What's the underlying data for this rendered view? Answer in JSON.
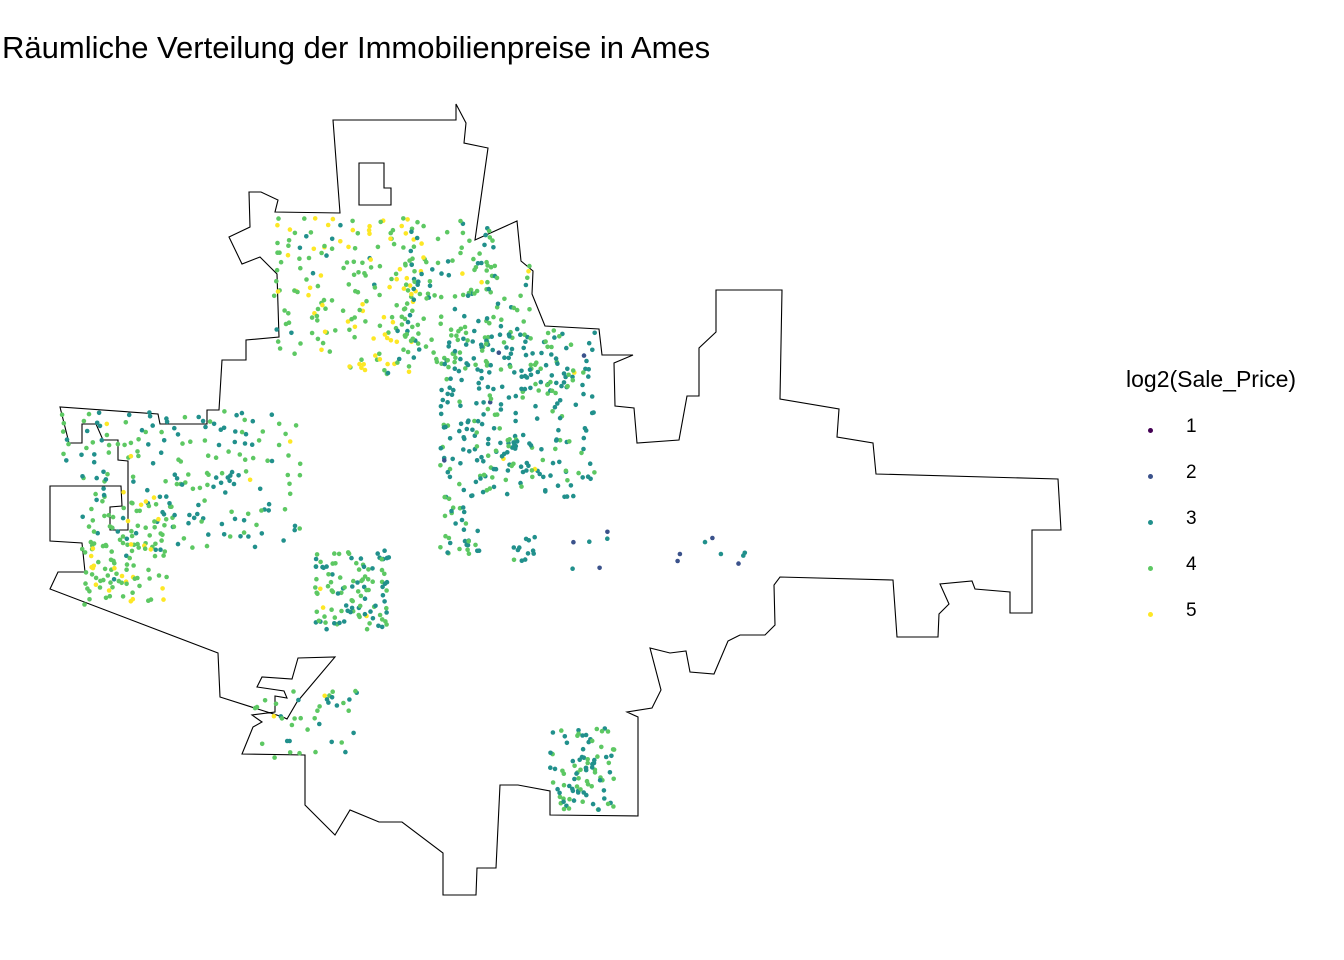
{
  "title": "Räumliche Verteilung der Immobilienpreise in Ames",
  "legend": {
    "title": "log2(Sale_Price)",
    "items": [
      {
        "label": "1",
        "color": "#440154"
      },
      {
        "label": "2",
        "color": "#3B528B"
      },
      {
        "label": "3",
        "color": "#21908C"
      },
      {
        "label": "4",
        "color": "#5DC863"
      },
      {
        "label": "5",
        "color": "#FDE725"
      }
    ]
  },
  "map_data": {
    "type": "point-map",
    "boundary": "Ames city limits",
    "color_scale": "viridis",
    "variable": "log2(Sale_Price)",
    "clusters": [
      {
        "area": "north-west",
        "level": 4,
        "mix": [
          0,
          0,
          0.05,
          0.65,
          0.3
        ]
      },
      {
        "area": "north-central",
        "level": 4,
        "mix": [
          0,
          0,
          0.25,
          0.7,
          0.05
        ]
      },
      {
        "area": "central",
        "level": 3,
        "mix": [
          0,
          0.02,
          0.65,
          0.32,
          0.01
        ]
      },
      {
        "area": "west",
        "level": 3,
        "mix": [
          0,
          0,
          0.45,
          0.52,
          0.03
        ]
      },
      {
        "area": "south-central",
        "level": 4,
        "mix": [
          0,
          0,
          0.35,
          0.6,
          0.05
        ]
      },
      {
        "area": "south-west",
        "level": 4,
        "mix": [
          0,
          0,
          0.05,
          0.8,
          0.15
        ]
      },
      {
        "area": "south-east",
        "level": 3,
        "mix": [
          0,
          0,
          0.55,
          0.45,
          0
        ]
      },
      {
        "area": "east",
        "level": 2,
        "mix": [
          0.05,
          0.45,
          0.5,
          0,
          0
        ]
      }
    ]
  }
}
